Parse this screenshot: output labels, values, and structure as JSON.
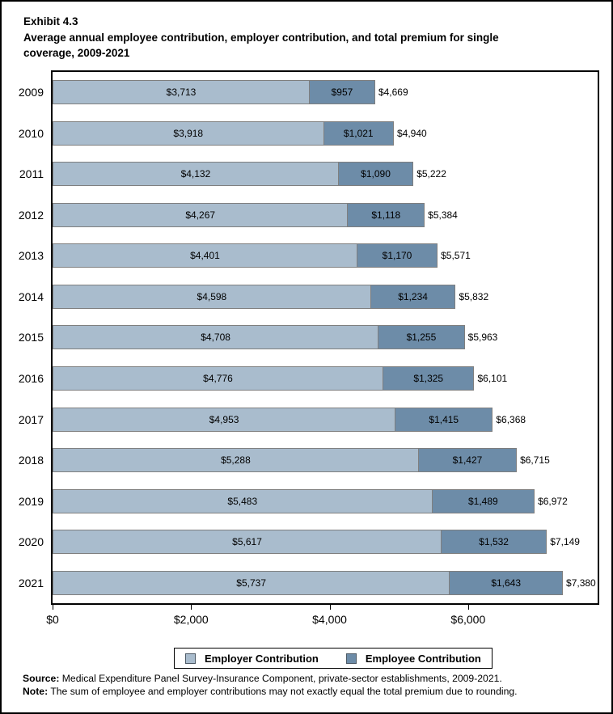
{
  "title": {
    "lines": [
      "Exhibit 4.3",
      "Average annual employee contribution, employer contribution, and total premium for single",
      "coverage, 2009-2021"
    ]
  },
  "colors": {
    "employer": "#a9bccd",
    "employee": "#6d8ca8",
    "bar_border": "#7f7f7f"
  },
  "chart_data": {
    "type": "bar",
    "orientation": "horizontal",
    "stacked": true,
    "title": "Average annual employee contribution, employer contribution, and total premium for single coverage, 2009-2021",
    "categories": [
      "2009",
      "2010",
      "2011",
      "2012",
      "2013",
      "2014",
      "2015",
      "2016",
      "2017",
      "2018",
      "2019",
      "2020",
      "2021"
    ],
    "series": [
      {
        "name": "Employer Contribution",
        "color": "#a9bccd",
        "values": [
          3713,
          3918,
          4132,
          4267,
          4401,
          4598,
          4708,
          4776,
          4953,
          5288,
          5483,
          5617,
          5737
        ]
      },
      {
        "name": "Employee Contribution",
        "color": "#6d8ca8",
        "values": [
          957,
          1021,
          1090,
          1118,
          1170,
          1234,
          1255,
          1325,
          1415,
          1427,
          1489,
          1532,
          1643
        ]
      }
    ],
    "totals": [
      4669,
      4940,
      5222,
      5384,
      5571,
      5832,
      5963,
      6101,
      6368,
      6715,
      6972,
      7149,
      7380
    ],
    "value_prefix": "$",
    "xlim": [
      0,
      7870
    ],
    "xticks": [
      {
        "value": 0,
        "label": "$0"
      },
      {
        "value": 2000,
        "label": "$2,000"
      },
      {
        "value": 4000,
        "label": "$4,000"
      },
      {
        "value": 6000,
        "label": "$6,000"
      }
    ],
    "legend_position": "bottom",
    "grid": false
  },
  "legend": {
    "items": [
      {
        "label": "Employer Contribution",
        "color": "#a9bccd"
      },
      {
        "label": "Employee Contribution",
        "color": "#6d8ca8"
      }
    ]
  },
  "footnotes": {
    "source_prefix": "Source:",
    "source_text": " Medical Expenditure Panel Survey-Insurance Component, private-sector establishments, 2009-2021.",
    "note_prefix": "Note:",
    "note_text": " The sum of employee and employer contributions may not exactly equal the total premium due to rounding."
  }
}
